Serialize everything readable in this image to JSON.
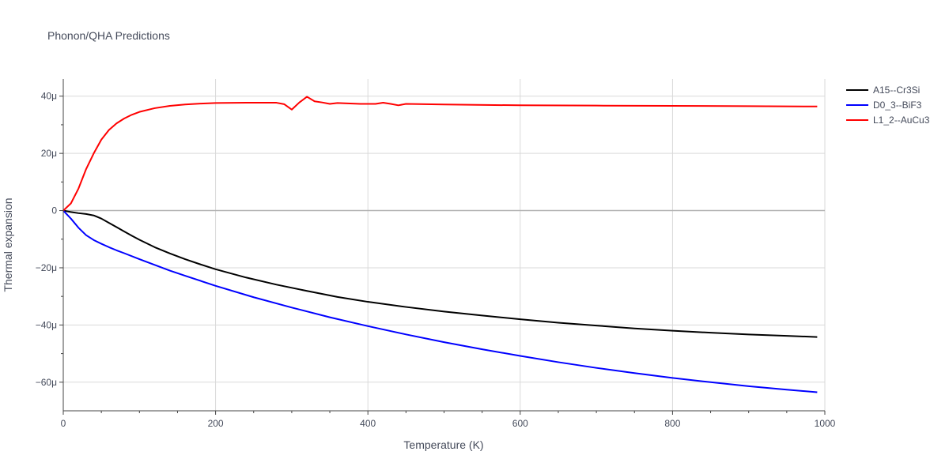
{
  "chart_data": {
    "type": "line",
    "title": "Phonon/QHA Predictions",
    "xlabel": "Temperature (K)",
    "ylabel": "Thermal expansion",
    "xlim": [
      0,
      1000
    ],
    "ylim": [
      -70,
      46
    ],
    "y_unit_suffix": "μ",
    "x_ticks": [
      0,
      200,
      400,
      600,
      800,
      1000
    ],
    "x_tick_labels": [
      "0",
      "200",
      "400",
      "600",
      "800",
      "1000"
    ],
    "y_ticks": [
      -60,
      -40,
      -20,
      0,
      20,
      40
    ],
    "y_tick_labels": [
      "−60μ",
      "−40μ",
      "−20μ",
      "0",
      "20μ",
      "40μ"
    ],
    "grid": true,
    "legend_position": "top-right",
    "series": [
      {
        "name": "A15--Cr3Si",
        "color": "#000000",
        "x": [
          0,
          10,
          20,
          30,
          40,
          50,
          60,
          70,
          80,
          90,
          100,
          120,
          140,
          160,
          180,
          200,
          240,
          280,
          320,
          360,
          400,
          450,
          500,
          550,
          600,
          650,
          700,
          750,
          800,
          850,
          900,
          950,
          990
        ],
        "y": [
          0,
          -0.5,
          -0.9,
          -1.2,
          -1.7,
          -2.8,
          -4.3,
          -5.8,
          -7.3,
          -8.8,
          -10.2,
          -12.8,
          -15.0,
          -17.0,
          -18.8,
          -20.5,
          -23.4,
          -25.9,
          -28.1,
          -30.2,
          -31.9,
          -33.7,
          -35.3,
          -36.7,
          -38.0,
          -39.2,
          -40.2,
          -41.2,
          -42.0,
          -42.7,
          -43.3,
          -43.8,
          -44.2
        ]
      },
      {
        "name": "D0_3--BiF3",
        "color": "#0000ff",
        "x": [
          0,
          10,
          20,
          30,
          40,
          50,
          60,
          70,
          80,
          100,
          120,
          140,
          160,
          200,
          250,
          300,
          350,
          400,
          450,
          500,
          550,
          600,
          650,
          700,
          750,
          800,
          850,
          900,
          950,
          990
        ],
        "y": [
          0,
          -2.8,
          -6.0,
          -8.6,
          -10.3,
          -11.6,
          -12.8,
          -13.9,
          -14.9,
          -17.0,
          -19.0,
          -21.0,
          -22.8,
          -26.3,
          -30.3,
          -33.9,
          -37.3,
          -40.4,
          -43.3,
          -46.0,
          -48.5,
          -50.8,
          -53.0,
          -55.0,
          -56.8,
          -58.5,
          -60.0,
          -61.4,
          -62.6,
          -63.5
        ]
      },
      {
        "name": "L1_2--AuCu3",
        "color": "#ff0000",
        "x": [
          0,
          10,
          20,
          30,
          40,
          50,
          60,
          70,
          80,
          90,
          100,
          120,
          140,
          160,
          180,
          200,
          240,
          280,
          290,
          300,
          310,
          320,
          330,
          340,
          350,
          360,
          370,
          380,
          390,
          400,
          410,
          420,
          430,
          440,
          450,
          500,
          600,
          700,
          800,
          900,
          990
        ],
        "y": [
          0,
          2.5,
          7.7,
          14.5,
          20.0,
          24.8,
          28.2,
          30.5,
          32.2,
          33.5,
          34.5,
          35.8,
          36.6,
          37.1,
          37.4,
          37.6,
          37.7,
          37.7,
          37.2,
          35.3,
          37.8,
          39.8,
          38.2,
          37.8,
          37.3,
          37.6,
          37.5,
          37.4,
          37.3,
          37.3,
          37.3,
          37.7,
          37.3,
          36.8,
          37.3,
          37.1,
          36.8,
          36.7,
          36.6,
          36.5,
          36.4
        ]
      }
    ]
  }
}
